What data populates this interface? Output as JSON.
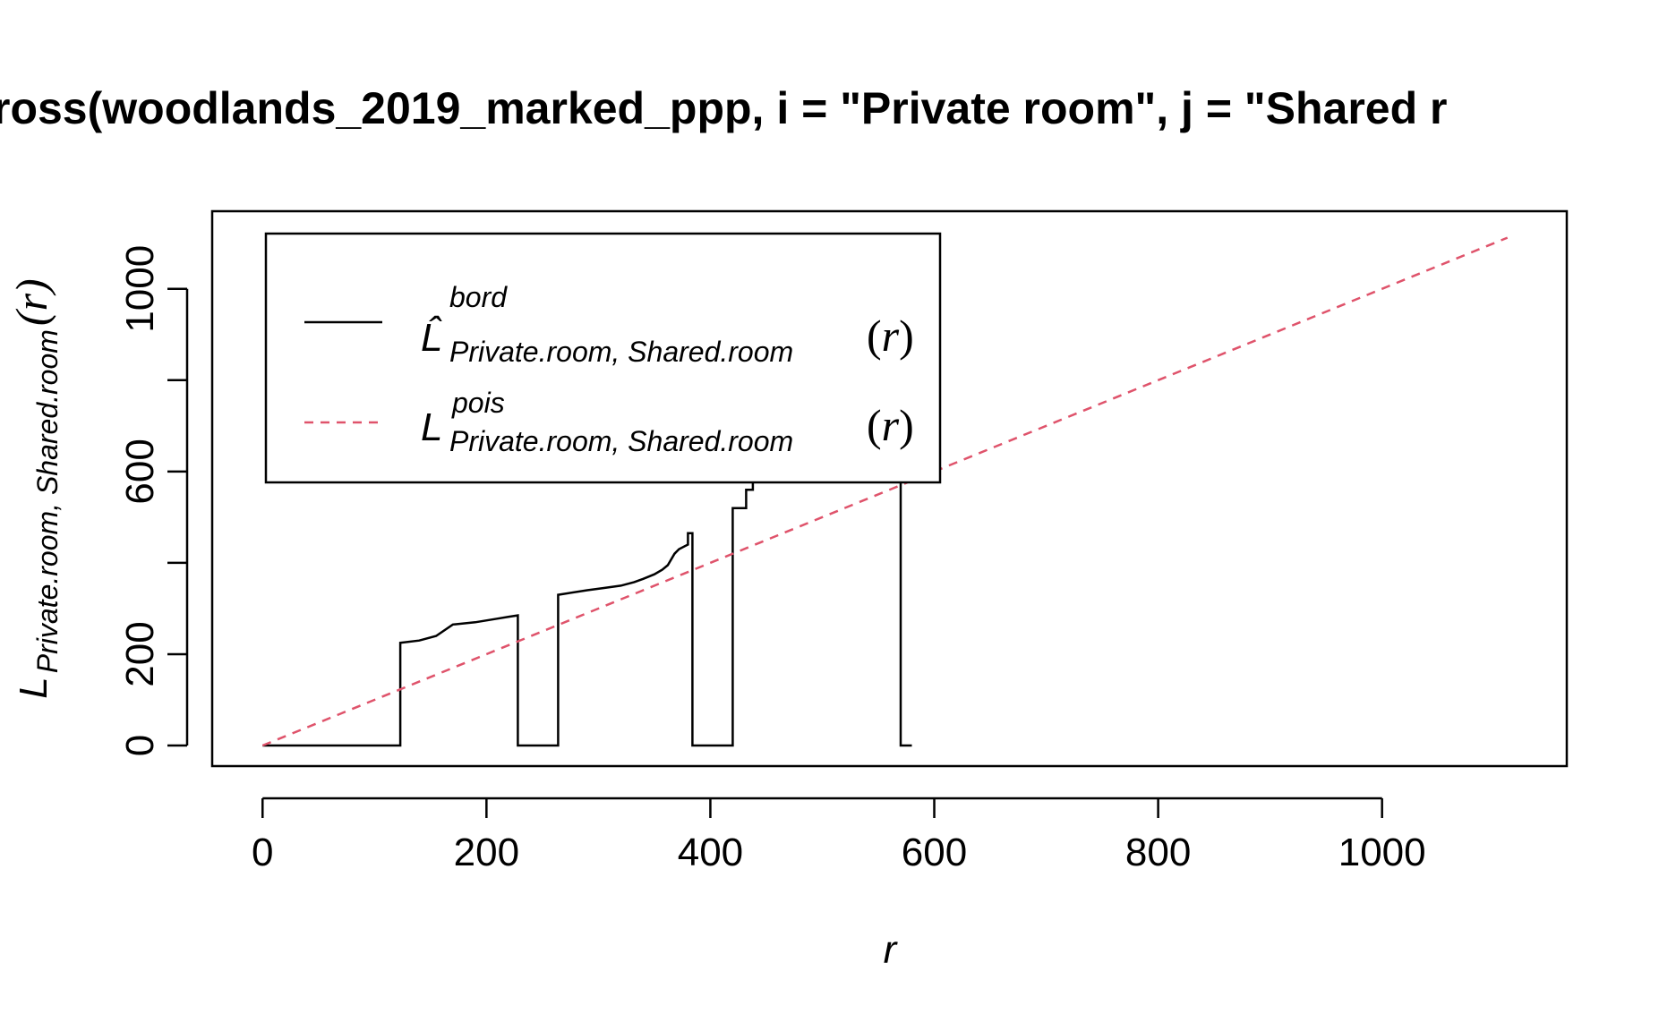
{
  "chart_data": {
    "type": "line",
    "title": "ross(woodlands_2019_marked_ppp, i = \"Private room\", j = \"Shared r",
    "xlabel": "r",
    "ylabel": {
      "main": "L",
      "subscript": "Private.room, Shared.room",
      "arg": "(r)"
    },
    "xlim": [
      -45,
      1165
    ],
    "ylim": [
      -45,
      1170
    ],
    "x_ticks": [
      0,
      200,
      400,
      600,
      800,
      1000
    ],
    "y_ticks": [
      0,
      200,
      400,
      600,
      800,
      1000
    ],
    "y_tick_labels": [
      {
        "value": 0,
        "label": "0"
      },
      {
        "value": 200,
        "label": "200"
      },
      {
        "value": 600,
        "label": "600"
      },
      {
        "value": 1000,
        "label": "1000"
      }
    ],
    "grid": false,
    "legend_position": "top-left",
    "series": [
      {
        "name": "bord",
        "legend": {
          "main": "L̂",
          "sup": "bord",
          "sub": "Private.room, Shared.room",
          "arg_open": "(",
          "arg_r": "r",
          "arg_close": ")"
        },
        "color": "#000000",
        "dash": "solid",
        "step": true,
        "x": [
          0,
          123,
          123,
          140,
          155,
          170,
          190,
          210,
          220,
          228,
          228,
          264,
          264,
          290,
          305,
          320,
          332,
          340,
          350,
          357,
          362,
          368,
          372,
          380,
          380,
          384,
          384,
          420,
          420,
          424,
          424,
          432,
          432,
          438,
          438,
          440,
          440,
          460,
          460,
          465,
          465,
          468,
          468,
          482,
          482,
          486,
          486,
          492,
          492,
          505,
          505,
          520,
          520,
          525,
          525,
          528,
          528,
          570,
          570,
          580
        ],
        "y": [
          0,
          0,
          225,
          230,
          240,
          265,
          270,
          278,
          282,
          285,
          0,
          0,
          330,
          340,
          345,
          350,
          358,
          365,
          375,
          385,
          395,
          420,
          430,
          440,
          465,
          465,
          0,
          0,
          520,
          520,
          520,
          520,
          560,
          560,
          770,
          780,
          780,
          780,
          600,
          600,
          600,
          600,
          600,
          600,
          680,
          680,
          740,
          740,
          850,
          850,
          860,
          860,
          860,
          860,
          1040,
          1040,
          1040,
          1040,
          0,
          0
        ]
      },
      {
        "name": "pois",
        "legend": {
          "main": "L",
          "sup": "pois",
          "sub": "Private.room, Shared.room",
          "arg_open": "(",
          "arg_r": "r",
          "arg_close": ")"
        },
        "color": "#df536b",
        "dash": "dashed",
        "step": false,
        "x": [
          0,
          1112
        ],
        "y": [
          0,
          1112
        ]
      }
    ]
  }
}
